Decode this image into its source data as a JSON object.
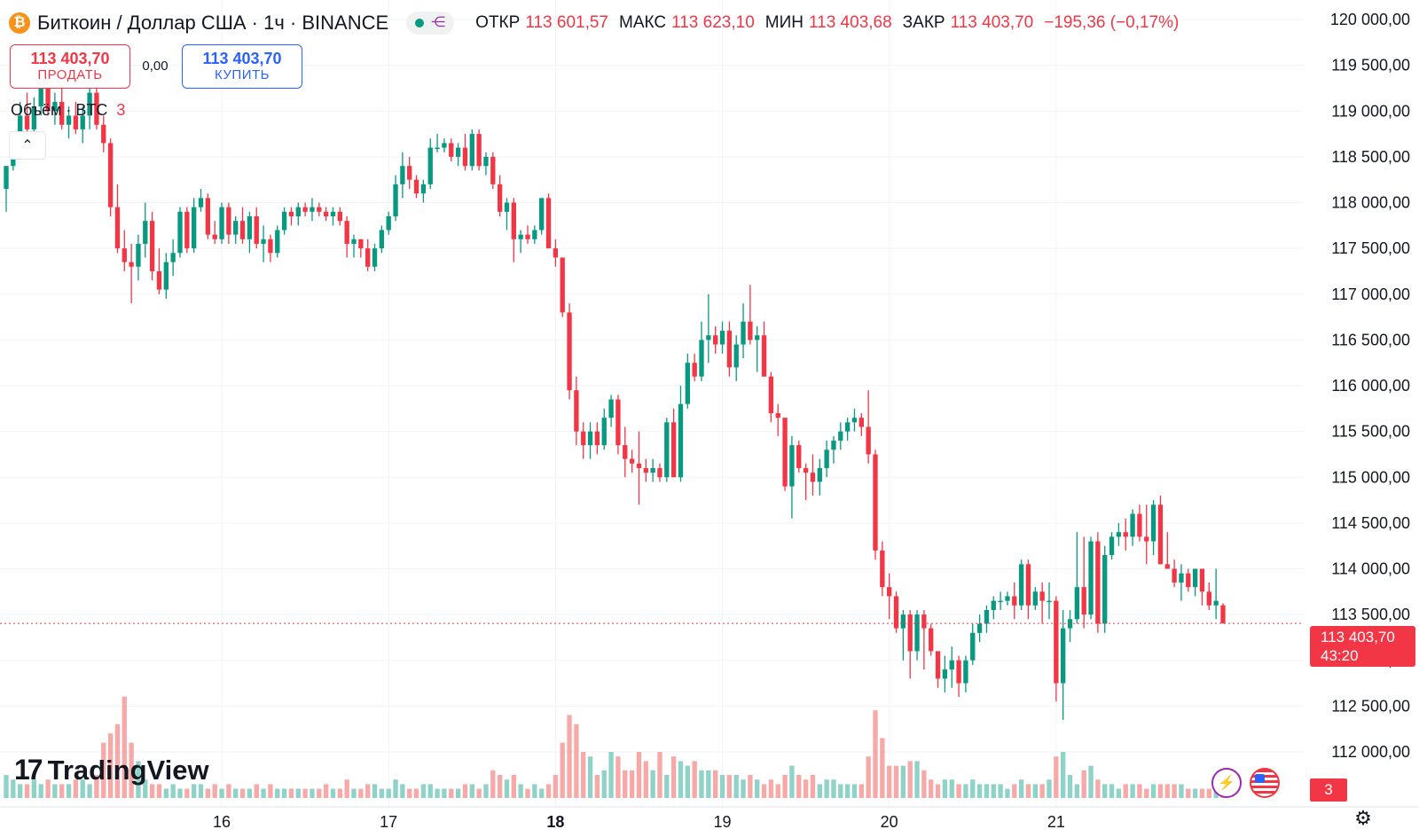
{
  "header": {
    "symbol_title": "Биткоин / Доллар США · 1ч · BINANCE",
    "btc_glyph": "₿",
    "ohlc": [
      {
        "label": "ОТКР",
        "value": "113 601,57"
      },
      {
        "label": "МАКС",
        "value": "113 623,10"
      },
      {
        "label": "МИН",
        "value": "113 403,68"
      },
      {
        "label": "ЗАКР",
        "value": "113 403,70"
      }
    ],
    "change": "−195,36 (−0,17%)"
  },
  "trade": {
    "sell_price": "113 403,70",
    "sell_label": "ПРОДАТЬ",
    "spread": "0,00",
    "buy_price": "113 403,70",
    "buy_label": "КУПИТЬ"
  },
  "volume_legend": {
    "label": "Объём · BTC",
    "value": "3"
  },
  "last_price_tag": {
    "price": "113 403,70",
    "countdown": "43:20"
  },
  "volume_tag": "3",
  "logo_text": "TradingView",
  "colors": {
    "up": "#089981",
    "down": "#f23645",
    "up_volume": "#8fd3c8",
    "down_volume": "#f7a9a7",
    "grid": "#f0f3fa"
  },
  "icons": {
    "collapse": "chevron-up-icon",
    "bolt": "lightning-icon",
    "flag": "us-flag-icon",
    "settings": "gear-icon",
    "share": "share-icon"
  },
  "chart_data": {
    "type": "candlestick",
    "interval": "1h",
    "x_axis_labels": [
      {
        "label": "16",
        "x": 16,
        "bold": false
      },
      {
        "label": "17",
        "x": 17,
        "bold": false
      },
      {
        "label": "18",
        "x": 18,
        "bold": true
      },
      {
        "label": "19",
        "x": 19,
        "bold": false
      },
      {
        "label": "20",
        "x": 20,
        "bold": false
      },
      {
        "label": "21",
        "x": 21,
        "bold": false
      }
    ],
    "y_ticks": [
      {
        "value": 120000,
        "label": "120 000,00"
      },
      {
        "value": 119500,
        "label": "119 500,00"
      },
      {
        "value": 119000,
        "label": "119 000,00"
      },
      {
        "value": 118500,
        "label": "118 500,00"
      },
      {
        "value": 118000,
        "label": "118 000,00"
      },
      {
        "value": 117500,
        "label": "117 500,00"
      },
      {
        "value": 117000,
        "label": "117 000,00"
      },
      {
        "value": 116500,
        "label": "116 500,00"
      },
      {
        "value": 116000,
        "label": "116 000,00"
      },
      {
        "value": 115500,
        "label": "115 500,00"
      },
      {
        "value": 115000,
        "label": "115 000,00"
      },
      {
        "value": 114500,
        "label": "114 500,00"
      },
      {
        "value": 114000,
        "label": "114 000,00"
      },
      {
        "value": 113500,
        "label": "113 500,00"
      },
      {
        "value": 113000,
        "label": "113 000,00"
      },
      {
        "value": 112500,
        "label": "112 500,00"
      },
      {
        "value": 112000,
        "label": "112 000,00"
      }
    ],
    "last_price": 113403.7,
    "candles": [
      [
        118150,
        118400,
        117900,
        118400,
        5
      ],
      [
        118400,
        118700,
        118350,
        118650,
        4
      ],
      [
        118650,
        119100,
        118600,
        118950,
        3
      ],
      [
        118950,
        119200,
        118700,
        118800,
        3
      ],
      [
        118800,
        119150,
        118750,
        119050,
        4
      ],
      [
        119050,
        119400,
        118950,
        119250,
        3
      ],
      [
        119250,
        119450,
        118950,
        119000,
        4
      ],
      [
        119000,
        119200,
        118850,
        119100,
        3
      ],
      [
        119100,
        119300,
        118800,
        118850,
        3
      ],
      [
        118850,
        119050,
        118700,
        118950,
        3
      ],
      [
        118950,
        119100,
        118750,
        118800,
        4
      ],
      [
        118800,
        119050,
        118650,
        118950,
        4
      ],
      [
        118950,
        119300,
        118800,
        119200,
        3
      ],
      [
        119200,
        119300,
        118800,
        118850,
        5
      ],
      [
        118850,
        118950,
        118550,
        118650,
        12
      ],
      [
        118650,
        118700,
        117850,
        117950,
        14
      ],
      [
        117950,
        118200,
        117450,
        117500,
        16
      ],
      [
        117500,
        117700,
        117250,
        117350,
        22
      ],
      [
        117350,
        117550,
        116900,
        117300,
        12
      ],
      [
        117300,
        117650,
        117150,
        117550,
        8
      ],
      [
        117550,
        118000,
        117400,
        117800,
        4
      ],
      [
        117800,
        117900,
        117150,
        117250,
        3
      ],
      [
        117250,
        117500,
        117000,
        117050,
        3
      ],
      [
        117050,
        117450,
        116950,
        117350,
        2
      ],
      [
        117350,
        117600,
        117200,
        117450,
        3
      ],
      [
        117450,
        117950,
        117400,
        117900,
        2
      ],
      [
        117900,
        117950,
        117450,
        117500,
        2
      ],
      [
        117500,
        118050,
        117450,
        117950,
        3
      ],
      [
        117950,
        118150,
        117900,
        118050,
        3
      ],
      [
        118050,
        118100,
        117600,
        117650,
        2
      ],
      [
        117650,
        117800,
        117550,
        117600,
        3
      ],
      [
        117600,
        118000,
        117550,
        117950,
        2
      ],
      [
        117950,
        118000,
        117550,
        117650,
        3
      ],
      [
        117650,
        117850,
        117550,
        117800,
        2
      ],
      [
        117800,
        117950,
        117550,
        117600,
        2
      ],
      [
        117600,
        117900,
        117450,
        117850,
        2
      ],
      [
        117850,
        117950,
        117500,
        117550,
        3
      ],
      [
        117550,
        117750,
        117350,
        117600,
        2
      ],
      [
        117600,
        117650,
        117350,
        117450,
        3
      ],
      [
        117450,
        117750,
        117400,
        117700,
        2
      ],
      [
        117700,
        117950,
        117650,
        117900,
        2
      ],
      [
        117900,
        117950,
        117750,
        117850,
        2
      ],
      [
        117850,
        118000,
        117750,
        117950,
        2
      ],
      [
        117950,
        118000,
        117850,
        117900,
        2
      ],
      [
        117900,
        118050,
        117800,
        117950,
        2
      ],
      [
        117950,
        118000,
        117850,
        117900,
        2
      ],
      [
        117900,
        117950,
        117800,
        117850,
        3
      ],
      [
        117850,
        117950,
        117750,
        117900,
        2
      ],
      [
        117900,
        117950,
        117750,
        117800,
        2
      ],
      [
        117800,
        117850,
        117400,
        117550,
        4
      ],
      [
        117550,
        117650,
        117400,
        117600,
        2
      ],
      [
        117600,
        117600,
        117400,
        117500,
        2
      ],
      [
        117500,
        117600,
        117250,
        117300,
        3
      ],
      [
        117300,
        117550,
        117250,
        117500,
        3
      ],
      [
        117500,
        117750,
        117450,
        117700,
        2
      ],
      [
        117700,
        117900,
        117650,
        117850,
        2
      ],
      [
        117850,
        118300,
        117800,
        118200,
        4
      ],
      [
        118200,
        118550,
        118050,
        118400,
        3
      ],
      [
        118400,
        118500,
        118150,
        118250,
        2
      ],
      [
        118250,
        118300,
        118050,
        118100,
        2
      ],
      [
        118100,
        118250,
        118000,
        118200,
        3
      ],
      [
        118200,
        118700,
        118150,
        118600,
        3
      ],
      [
        118600,
        118750,
        118550,
        118600,
        2
      ],
      [
        118600,
        118700,
        118550,
        118650,
        2
      ],
      [
        118650,
        118700,
        118450,
        118500,
        2
      ],
      [
        118500,
        118650,
        118400,
        118600,
        2
      ],
      [
        118600,
        118750,
        118350,
        118400,
        3
      ],
      [
        118400,
        118800,
        118350,
        118750,
        3
      ],
      [
        118750,
        118800,
        118350,
        118400,
        2
      ],
      [
        118400,
        118550,
        118300,
        118500,
        3
      ],
      [
        118500,
        118550,
        118150,
        118200,
        6
      ],
      [
        118200,
        118300,
        117850,
        117900,
        5
      ],
      [
        117900,
        118050,
        117700,
        118000,
        4
      ],
      [
        118000,
        118050,
        117350,
        117600,
        5
      ],
      [
        117600,
        117700,
        117450,
        117650,
        3
      ],
      [
        117650,
        117750,
        117550,
        117600,
        2
      ],
      [
        117600,
        117750,
        117550,
        117700,
        3
      ],
      [
        117700,
        118050,
        117650,
        118050,
        2
      ],
      [
        118050,
        118100,
        117500,
        117500,
        3
      ],
      [
        117500,
        117600,
        117300,
        117400,
        5
      ],
      [
        117400,
        117400,
        116750,
        116800,
        12
      ],
      [
        116800,
        116900,
        115850,
        115950,
        18
      ],
      [
        115950,
        116100,
        115350,
        115500,
        16
      ],
      [
        115500,
        115600,
        115200,
        115350,
        10
      ],
      [
        115350,
        115600,
        115200,
        115500,
        9
      ],
      [
        115500,
        115600,
        115250,
        115350,
        5
      ],
      [
        115350,
        115750,
        115300,
        115650,
        6
      ],
      [
        115650,
        115900,
        115550,
        115850,
        10
      ],
      [
        115850,
        115900,
        115250,
        115350,
        9
      ],
      [
        115350,
        115550,
        115000,
        115200,
        6
      ],
      [
        115200,
        115300,
        115050,
        115150,
        6
      ],
      [
        115150,
        115500,
        114700,
        115100,
        10
      ],
      [
        115100,
        115200,
        114950,
        115050,
        8
      ],
      [
        115050,
        115200,
        114950,
        115100,
        6
      ],
      [
        115100,
        115150,
        114950,
        115000,
        10
      ],
      [
        115000,
        115650,
        114950,
        115600,
        5
      ],
      [
        115600,
        115750,
        115000,
        115000,
        9
      ],
      [
        115000,
        116000,
        114950,
        115800,
        8
      ],
      [
        115800,
        116350,
        115750,
        116250,
        7
      ],
      [
        116250,
        116350,
        116050,
        116100,
        8
      ],
      [
        116100,
        116700,
        116050,
        116500,
        6
      ],
      [
        116500,
        117000,
        116250,
        116550,
        6
      ],
      [
        116550,
        116650,
        116350,
        116450,
        6
      ],
      [
        116450,
        116700,
        116350,
        116600,
        5
      ],
      [
        116600,
        116700,
        116100,
        116200,
        5
      ],
      [
        116200,
        116550,
        116050,
        116450,
        5
      ],
      [
        116450,
        116900,
        116300,
        116700,
        4
      ],
      [
        116700,
        117100,
        116450,
        116500,
        5
      ],
      [
        116500,
        116650,
        116150,
        116550,
        4
      ],
      [
        116550,
        116700,
        116100,
        116100,
        3
      ],
      [
        116100,
        116150,
        115600,
        115700,
        4
      ],
      [
        115700,
        115800,
        115450,
        115650,
        3
      ],
      [
        115650,
        115650,
        114850,
        114900,
        5
      ],
      [
        114900,
        115450,
        114550,
        115350,
        7
      ],
      [
        115350,
        115400,
        115050,
        115100,
        5
      ],
      [
        115100,
        115150,
        114750,
        115050,
        4
      ],
      [
        115050,
        115250,
        114800,
        114950,
        5
      ],
      [
        114950,
        115200,
        114800,
        115100,
        3
      ],
      [
        115100,
        115400,
        115000,
        115300,
        4
      ],
      [
        115300,
        115450,
        115150,
        115400,
        4
      ],
      [
        115400,
        115600,
        115300,
        115500,
        3
      ],
      [
        115500,
        115650,
        115400,
        115600,
        3
      ],
      [
        115600,
        115750,
        115500,
        115650,
        3
      ],
      [
        115650,
        115700,
        115450,
        115550,
        3
      ],
      [
        115550,
        115950,
        115150,
        115250,
        9
      ],
      [
        115250,
        115300,
        114100,
        114200,
        19
      ],
      [
        114200,
        114300,
        113700,
        113800,
        13
      ],
      [
        113800,
        113950,
        113450,
        113700,
        7
      ],
      [
        113700,
        113750,
        113300,
        113350,
        7
      ],
      [
        113350,
        113550,
        113000,
        113500,
        7
      ],
      [
        113500,
        113550,
        112800,
        113100,
        8
      ],
      [
        113100,
        113550,
        113000,
        113500,
        8
      ],
      [
        113500,
        113550,
        112900,
        113350,
        6
      ],
      [
        113350,
        113400,
        113050,
        113100,
        4
      ],
      [
        113100,
        113100,
        112700,
        112800,
        3
      ],
      [
        112800,
        113050,
        112650,
        112900,
        4
      ],
      [
        112900,
        113150,
        112700,
        113000,
        4
      ],
      [
        113000,
        113050,
        112600,
        112750,
        3
      ],
      [
        112750,
        113050,
        112650,
        113000,
        3
      ],
      [
        113000,
        113400,
        112950,
        113300,
        4
      ],
      [
        113300,
        113500,
        113200,
        113400,
        3
      ],
      [
        113400,
        113600,
        113300,
        113550,
        3
      ],
      [
        113550,
        113700,
        113450,
        113650,
        3
      ],
      [
        113650,
        113750,
        113550,
        113650,
        3
      ],
      [
        113650,
        113750,
        113600,
        113700,
        2
      ],
      [
        113700,
        113850,
        113450,
        113600,
        3
      ],
      [
        113600,
        114100,
        113550,
        114050,
        4
      ],
      [
        114050,
        114100,
        113450,
        113600,
        3
      ],
      [
        113600,
        113800,
        113550,
        113750,
        3
      ],
      [
        113750,
        113850,
        113400,
        113650,
        3
      ],
      [
        113650,
        113850,
        113450,
        113650,
        4
      ],
      [
        113650,
        113700,
        112550,
        112750,
        9
      ],
      [
        112750,
        113550,
        112350,
        113350,
        10
      ],
      [
        113350,
        113550,
        113200,
        113450,
        5
      ],
      [
        113450,
        114400,
        113400,
        113800,
        3
      ],
      [
        113800,
        114350,
        113350,
        113500,
        6
      ],
      [
        113500,
        114350,
        113450,
        114300,
        7
      ],
      [
        114300,
        114400,
        113300,
        113400,
        4
      ],
      [
        113400,
        114250,
        113300,
        114150,
        3
      ],
      [
        114150,
        114400,
        114100,
        114350,
        3
      ],
      [
        114350,
        114500,
        114250,
        114400,
        2
      ],
      [
        114400,
        114550,
        114200,
        114350,
        3
      ],
      [
        114350,
        114650,
        114250,
        114600,
        3
      ],
      [
        114600,
        114700,
        114300,
        114350,
        3
      ],
      [
        114350,
        114700,
        114050,
        114300,
        2
      ],
      [
        114300,
        114750,
        114150,
        114700,
        3
      ],
      [
        114700,
        114800,
        114050,
        114050,
        3
      ],
      [
        114050,
        114400,
        114000,
        114000,
        3
      ],
      [
        114000,
        114100,
        113800,
        113850,
        3
      ],
      [
        113850,
        114050,
        113650,
        113950,
        3
      ],
      [
        113950,
        114000,
        113750,
        113800,
        2
      ],
      [
        113800,
        114000,
        113700,
        114000,
        2
      ],
      [
        114000,
        114000,
        113600,
        113750,
        2
      ],
      [
        113750,
        113850,
        113550,
        113600,
        2
      ],
      [
        113600,
        114000,
        113450,
        113650,
        3
      ],
      [
        113601.57,
        113623.1,
        113403.68,
        113403.7,
        3
      ]
    ]
  }
}
